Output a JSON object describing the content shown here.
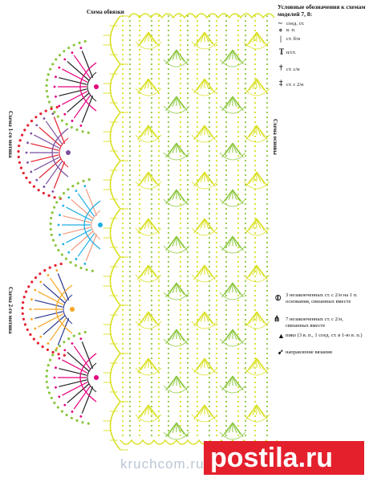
{
  "labels": {
    "edging_scheme": "Схема обвязки",
    "motif1_scheme": "Схема 1-го мотива",
    "motif2_scheme": "Схема 2-го мотива",
    "main_scheme": "Схема основы"
  },
  "legend": {
    "title": "Условные обозначения к схемам моделей 7, 8:",
    "items": [
      {
        "icon": "slip-stitch-icon",
        "text": "соед. ст."
      },
      {
        "icon": "chain-icon",
        "text": "в. п."
      },
      {
        "icon": "single-crochet-icon",
        "text": "ст. б/н"
      },
      {
        "icon": "half-double-icon",
        "text": "п/ст."
      },
      {
        "icon": "double-crochet-icon",
        "text": "ст. с/н"
      },
      {
        "icon": "treble-crochet-icon",
        "text": "ст. с 2/н"
      }
    ],
    "items2": [
      {
        "icon": "cluster-3-icon",
        "text": "3 незаконченных ст. с 2/н на 1 п. основания, связанных вместе"
      },
      {
        "icon": "cluster-7-icon",
        "text": "7 незаконченных ст. с 2/н, связанных вместе"
      },
      {
        "icon": "picot-icon",
        "text": "пико (3 в. п., 1 соед. ст. в 1-ю в. п.)"
      },
      {
        "icon": "direction-arrow-icon",
        "text": "направление вязания"
      }
    ]
  },
  "watermark": "kruchcom.ru",
  "logo": "postila.ru",
  "colors": {
    "yellow": "#d9e021",
    "green": "#8cc63f",
    "black": "#222222",
    "magenta": "#e6007e",
    "purple": "#7b4fa0",
    "red": "#e5202e",
    "cyan": "#20aee4",
    "salmon": "#f19a7e",
    "orange": "#f5a623",
    "navy": "#2b3990",
    "logo_bg": "#e4202d"
  }
}
